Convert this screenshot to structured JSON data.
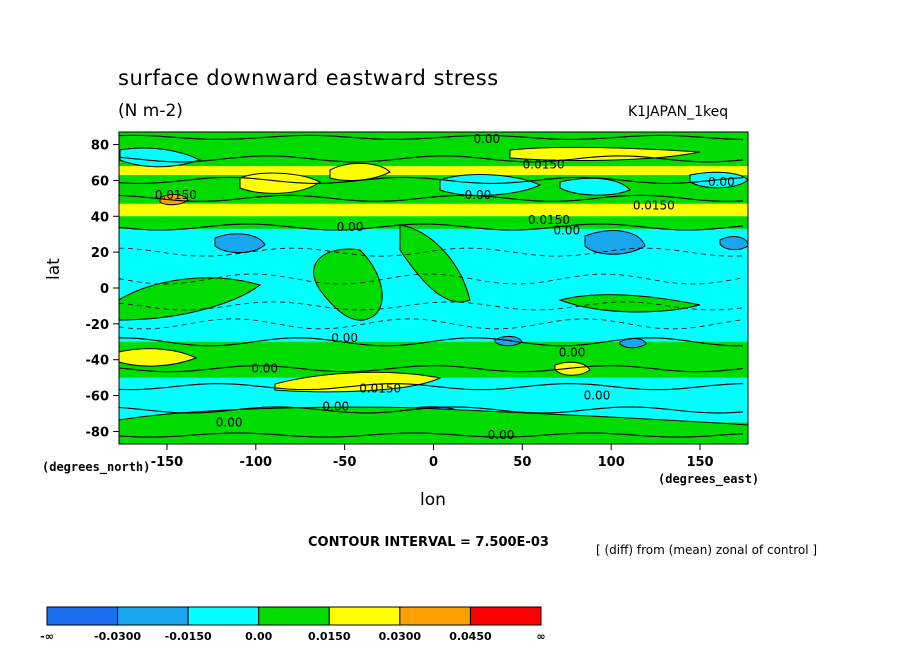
{
  "chart_data": {
    "type": "heatmap",
    "title": "surface downward eastward stress",
    "units": "(N m-2)",
    "dataset": "K1JAPAN_1keq",
    "ylabel": "lat",
    "xlabel": "lon",
    "y_units_label": "(degrees_north)",
    "x_units_label": "(degrees_east)",
    "xlim": [
      -177,
      177
    ],
    "ylim": [
      -87,
      87
    ],
    "x_ticks": [
      -150,
      -100,
      -50,
      0,
      50,
      100,
      150
    ],
    "y_ticks": [
      80,
      60,
      40,
      20,
      0,
      -20,
      -40,
      -60,
      -80
    ],
    "contour_interval": "CONTOUR INTERVAL = 7.500E-03",
    "note": "[ (diff) from (mean) zonal of control ]",
    "colorbar": {
      "labels": [
        "-∞",
        "-0.0300",
        "-0.0150",
        "0.00",
        "0.0150",
        "0.0300",
        "0.0450",
        "∞"
      ],
      "colors": [
        "#1a6ef2",
        "#18a6ee",
        "#00ffff",
        "#00dc00",
        "#ffff00",
        "#ff9f00",
        "#ff0000"
      ]
    },
    "contour_labels": [
      {
        "text": "0.00",
        "lon": 30,
        "lat": 83
      },
      {
        "text": "0.0150",
        "lon": 62,
        "lat": 69
      },
      {
        "text": "0.00",
        "lon": 162,
        "lat": 59
      },
      {
        "text": "0.0150",
        "lon": -145,
        "lat": 52
      },
      {
        "text": "0.00",
        "lon": 25,
        "lat": 52
      },
      {
        "text": "0.0150",
        "lon": 124,
        "lat": 46
      },
      {
        "text": "0.0150",
        "lon": 65,
        "lat": 38
      },
      {
        "text": "0.00",
        "lon": -47,
        "lat": 34
      },
      {
        "text": "0.00",
        "lon": 75,
        "lat": 32
      },
      {
        "text": "0.00",
        "lon": -50,
        "lat": -28
      },
      {
        "text": "0.00",
        "lon": 78,
        "lat": -36
      },
      {
        "text": "0.00",
        "lon": -95,
        "lat": -45
      },
      {
        "text": "0.0150",
        "lon": -30,
        "lat": -56
      },
      {
        "text": "0.00",
        "lon": 92,
        "lat": -60
      },
      {
        "text": "0.00",
        "lon": -55,
        "lat": -66
      },
      {
        "text": "0.00",
        "lon": -115,
        "lat": -75
      },
      {
        "text": "0.00",
        "lon": 38,
        "lat": -82
      }
    ],
    "regions": [
      {
        "level": "0.00",
        "type": "band",
        "lat_from": 87,
        "lat_to": -87
      },
      {
        "level": "-0.0150",
        "type": "band",
        "lat_from": 33,
        "lat_to": -30
      },
      {
        "level": "0.0150",
        "type": "band",
        "lat_from": 47,
        "lat_to": 40
      },
      {
        "level": "0.0150",
        "type": "band",
        "lat_from": 68,
        "lat_to": 63
      },
      {
        "level": "-0.0150",
        "type": "band",
        "lat_from": -50,
        "lat_to": -75
      }
    ]
  }
}
